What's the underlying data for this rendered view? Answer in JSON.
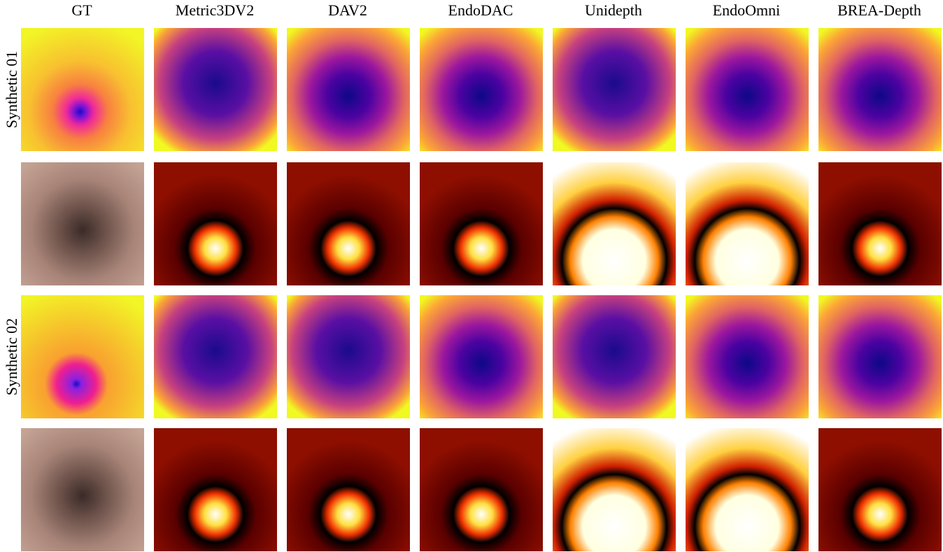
{
  "columns": [
    "GT",
    "Metric3DV2",
    "DAV2",
    "EndoDAC",
    "Unidepth",
    "EndoOmni",
    "BREA-Depth"
  ],
  "row_labels": [
    "Synthetic 01",
    "Synthetic 02"
  ]
}
